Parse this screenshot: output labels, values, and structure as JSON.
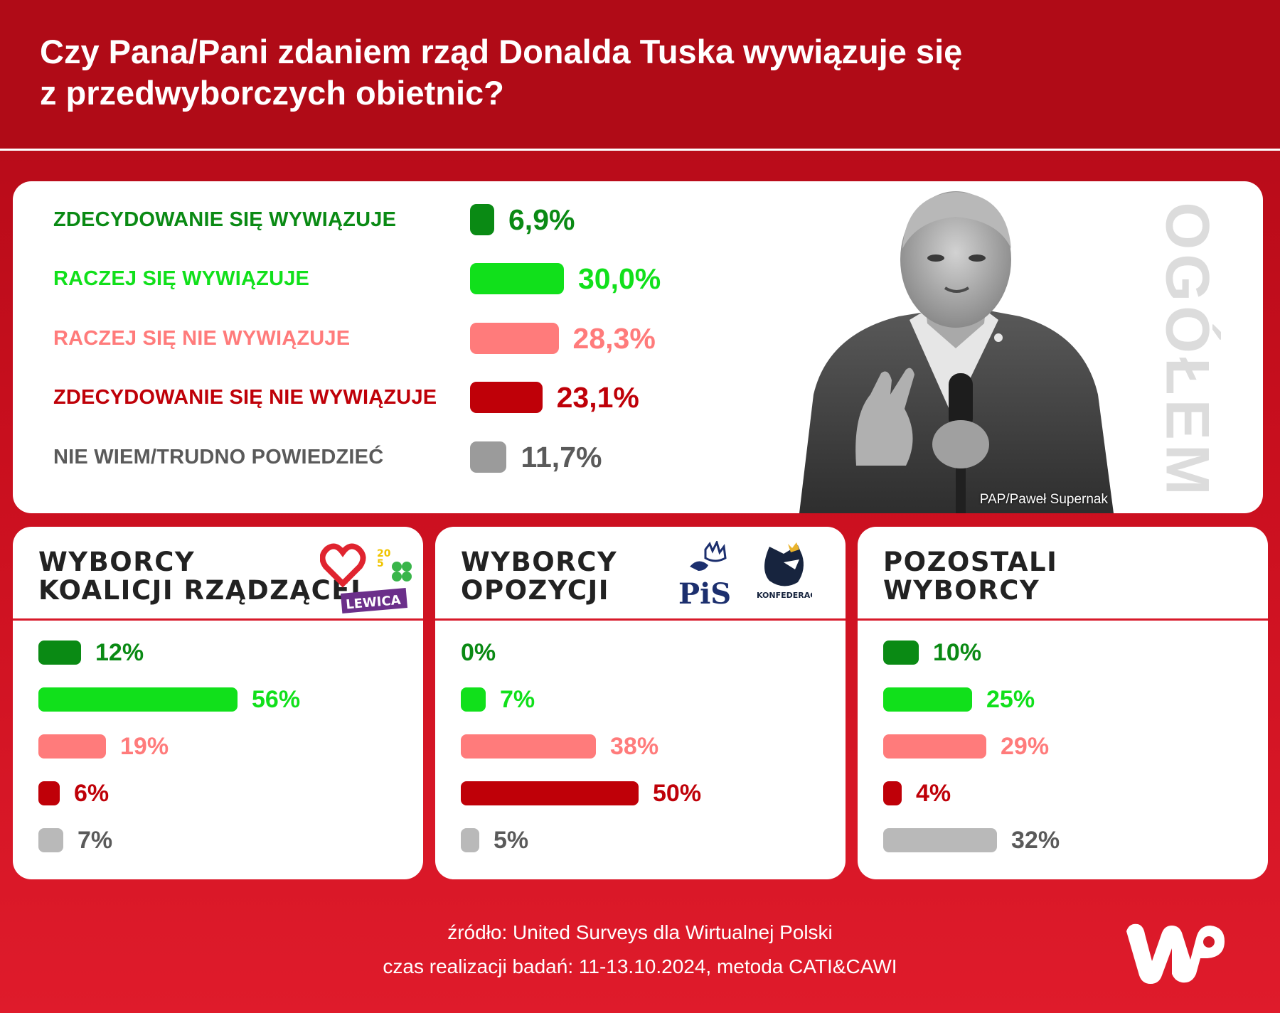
{
  "header": {
    "title_line1": "Czy Pana/Pani zdaniem rząd Donalda Tuska wywiązuje się",
    "title_line2": "z przedwyborczych obietnic?"
  },
  "colors": {
    "strong_yes": "#0a8a14",
    "yes": "#11e01b",
    "no": "#ff7b7b",
    "strong_no": "#bf0008",
    "dont_know": "#9b9b9b",
    "dont_know_light": "#b9b9b9"
  },
  "photo": {
    "credit": "PAP/Paweł Supernak",
    "side_label": "OGÓŁEM"
  },
  "chart_data": [
    {
      "type": "bar",
      "name": "OGÓŁEM",
      "categories": [
        "ZDECYDOWANIE SIĘ WYWIĄZUJE",
        "RACZEJ SIĘ WYWIĄZUJE",
        "RACZEJ SIĘ NIE WYWIĄZUJE",
        "ZDECYDOWANIE SIĘ NIE WYWIĄZUJE",
        "NIE WIEM/TRUDNO POWIEDZIEĆ"
      ],
      "values": [
        6.9,
        30.0,
        28.3,
        23.1,
        11.7
      ],
      "labels": [
        "6,9%",
        "30,0%",
        "28,3%",
        "23,1%",
        "11,7%"
      ]
    },
    {
      "type": "bar",
      "title_line1": "WYBORCY",
      "title_line2": "KOALICJI RZĄDZĄCEJ",
      "logos": [
        "heart-logo",
        "2050-logo",
        "clover-logo",
        "LEWICA"
      ],
      "values": [
        12,
        56,
        19,
        6,
        7
      ],
      "labels": [
        "12%",
        "56%",
        "19%",
        "6%",
        "7%"
      ]
    },
    {
      "type": "bar",
      "title_line1": "WYBORCY",
      "title_line2": "OPOZYCJI",
      "logos": [
        "PiS",
        "KONFEDERACJA"
      ],
      "values": [
        0,
        7,
        38,
        50,
        5
      ],
      "labels": [
        "0%",
        "7%",
        "38%",
        "50%",
        "5%"
      ]
    },
    {
      "type": "bar",
      "title_line1": "POZOSTALI",
      "title_line2": "WYBORCY",
      "values": [
        10,
        25,
        29,
        4,
        32
      ],
      "labels": [
        "10%",
        "25%",
        "29%",
        "4%",
        "32%"
      ]
    }
  ],
  "footer": {
    "source": "źródło: United Surveys dla Wirtualnej Polski",
    "method": "czas realizacji badań: 11-13.10.2024, metoda CATI&CAWI"
  },
  "logo_text": "WP"
}
